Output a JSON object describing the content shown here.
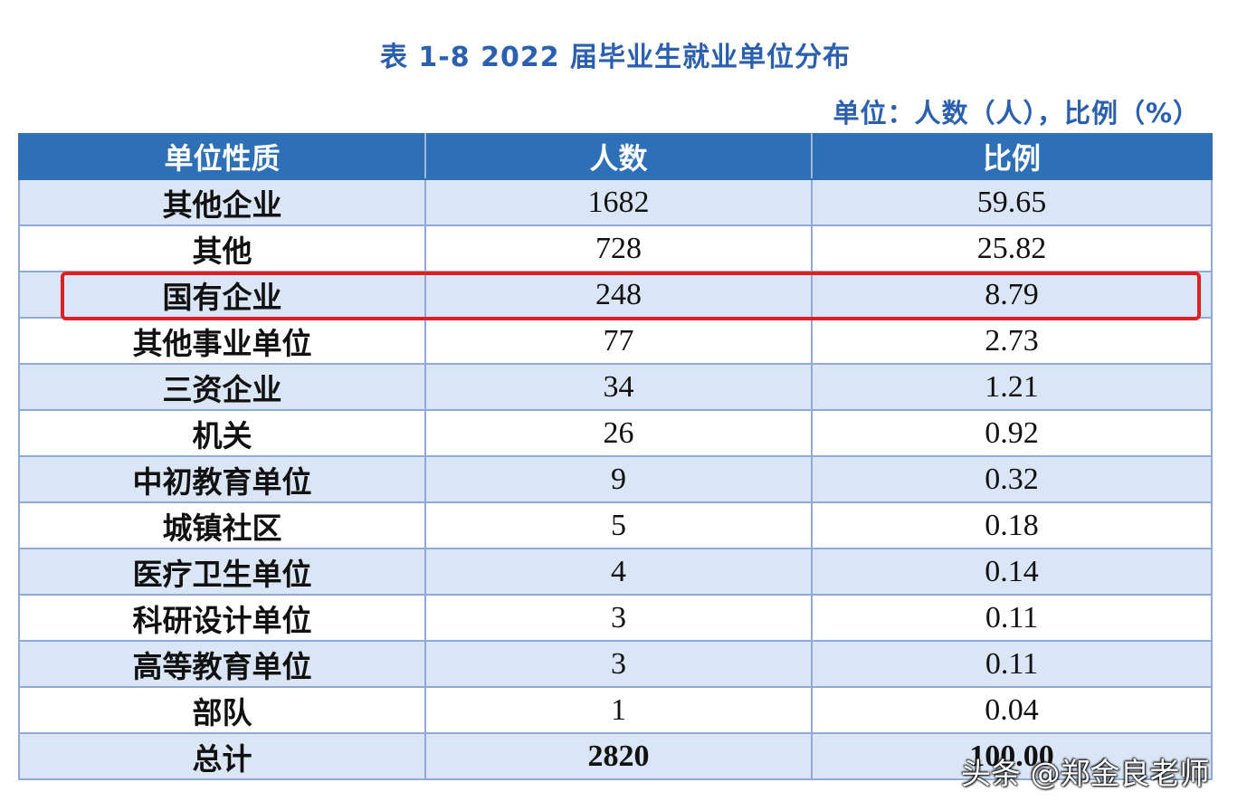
{
  "title": "表 1-8  2022 届毕业生就业单位分布",
  "unit_note": "单位：人数（人），比例（%）",
  "table": {
    "headers": [
      "单位性质",
      "人数",
      "比例"
    ],
    "rows": [
      {
        "type": "其他企业",
        "count": "1682",
        "ratio": "59.65"
      },
      {
        "type": "其他",
        "count": "728",
        "ratio": "25.82"
      },
      {
        "type": "国有企业",
        "count": "248",
        "ratio": "8.79"
      },
      {
        "type": "其他事业单位",
        "count": "77",
        "ratio": "2.73"
      },
      {
        "type": "三资企业",
        "count": "34",
        "ratio": "1.21"
      },
      {
        "type": "机关",
        "count": "26",
        "ratio": "0.92"
      },
      {
        "type": "中初教育单位",
        "count": "9",
        "ratio": "0.32"
      },
      {
        "type": "城镇社区",
        "count": "5",
        "ratio": "0.18"
      },
      {
        "type": "医疗卫生单位",
        "count": "4",
        "ratio": "0.14"
      },
      {
        "type": "科研设计单位",
        "count": "3",
        "ratio": "0.11"
      },
      {
        "type": "高等教育单位",
        "count": "3",
        "ratio": "0.11"
      },
      {
        "type": "部队",
        "count": "1",
        "ratio": "0.04"
      }
    ],
    "total": {
      "type": "总计",
      "count": "2820",
      "ratio": "100.00"
    }
  },
  "highlighted_row": "国有企业",
  "watermark": "头条 @郑金良老师",
  "colors": {
    "title": "#2b5fb0",
    "header_bg": "#2e70b8",
    "row_alt_bg": "#dae5f5",
    "highlight_border": "#e02020"
  }
}
